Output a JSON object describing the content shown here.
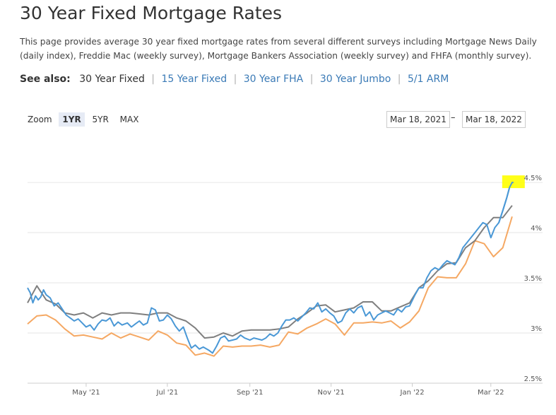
{
  "page": {
    "title": "30 Year Fixed Mortgage Rates",
    "description": "This page provides average 30 year fixed mortgage rates from several different surveys including Mortgage News Daily (daily index), Freddie Mac (weekly survey), Mortgage Bankers Association (weekly survey) and FHFA (monthly survey).",
    "see_also": {
      "label": "See also:",
      "current": "30 Year Fixed",
      "links": [
        "15 Year Fixed",
        "30 Year FHA",
        "30 Year Jumbo",
        "5/1 ARM"
      ]
    }
  },
  "controls": {
    "zoom_label": "Zoom",
    "zoom_options": [
      "1YR",
      "5YR",
      "MAX"
    ],
    "zoom_selected": "1YR",
    "range_from": "Mar 18, 2021",
    "range_to": "Mar 18, 2022",
    "range_separator": "–"
  },
  "colors": {
    "daily": "#4a98d6",
    "gray": "#7f7f7f",
    "orange": "#f5a863",
    "highlight": "#ffff00",
    "grid": "#e6e6e6"
  },
  "chart_data": {
    "type": "line",
    "x_ticks": [
      {
        "date": "2021-05-01",
        "label": "May '21"
      },
      {
        "date": "2021-07-01",
        "label": "Jul '21"
      },
      {
        "date": "2021-09-01",
        "label": "Sep '21"
      },
      {
        "date": "2021-11-01",
        "label": "Nov '21"
      },
      {
        "date": "2022-01-01",
        "label": "Jan '22"
      },
      {
        "date": "2022-03-01",
        "label": "Mar '22"
      }
    ],
    "y_ticks": [
      {
        "value": 2.5,
        "label": "2.5%"
      },
      {
        "value": 3.0,
        "label": "3%"
      },
      {
        "value": 3.5,
        "label": "3.5%"
      },
      {
        "value": 4.0,
        "label": "4%"
      },
      {
        "value": 4.5,
        "label": "4.5%"
      }
    ],
    "xlim": [
      "2021-03-18",
      "2022-03-25"
    ],
    "ylim": [
      2.5,
      5.05
    ],
    "grid": "horizontal",
    "highlight_last_point": true,
    "series": [
      {
        "color": "#4a98d6",
        "points": [
          [
            "2021-03-18",
            3.45
          ],
          [
            "2021-03-20",
            3.4
          ],
          [
            "2021-03-22",
            3.3
          ],
          [
            "2021-03-24",
            3.37
          ],
          [
            "2021-03-26",
            3.33
          ],
          [
            "2021-03-28",
            3.36
          ],
          [
            "2021-03-30",
            3.43
          ],
          [
            "2021-04-01",
            3.38
          ],
          [
            "2021-04-04",
            3.35
          ],
          [
            "2021-04-07",
            3.27
          ],
          [
            "2021-04-10",
            3.3
          ],
          [
            "2021-04-13",
            3.24
          ],
          [
            "2021-04-16",
            3.18
          ],
          [
            "2021-04-19",
            3.15
          ],
          [
            "2021-04-22",
            3.12
          ],
          [
            "2021-04-25",
            3.14
          ],
          [
            "2021-04-28",
            3.1
          ],
          [
            "2021-05-01",
            3.06
          ],
          [
            "2021-05-04",
            3.08
          ],
          [
            "2021-05-07",
            3.03
          ],
          [
            "2021-05-10",
            3.09
          ],
          [
            "2021-05-13",
            3.13
          ],
          [
            "2021-05-16",
            3.12
          ],
          [
            "2021-05-19",
            3.15
          ],
          [
            "2021-05-22",
            3.07
          ],
          [
            "2021-05-25",
            3.11
          ],
          [
            "2021-05-28",
            3.08
          ],
          [
            "2021-06-01",
            3.1
          ],
          [
            "2021-06-04",
            3.06
          ],
          [
            "2021-06-07",
            3.09
          ],
          [
            "2021-06-10",
            3.12
          ],
          [
            "2021-06-13",
            3.08
          ],
          [
            "2021-06-16",
            3.1
          ],
          [
            "2021-06-19",
            3.25
          ],
          [
            "2021-06-22",
            3.23
          ],
          [
            "2021-06-25",
            3.12
          ],
          [
            "2021-06-28",
            3.13
          ],
          [
            "2021-07-01",
            3.18
          ],
          [
            "2021-07-04",
            3.14
          ],
          [
            "2021-07-07",
            3.07
          ],
          [
            "2021-07-10",
            3.02
          ],
          [
            "2021-07-13",
            3.06
          ],
          [
            "2021-07-16",
            2.95
          ],
          [
            "2021-07-19",
            2.85
          ],
          [
            "2021-07-22",
            2.88
          ],
          [
            "2021-07-25",
            2.84
          ],
          [
            "2021-07-28",
            2.86
          ],
          [
            "2021-08-01",
            2.83
          ],
          [
            "2021-08-04",
            2.8
          ],
          [
            "2021-08-07",
            2.87
          ],
          [
            "2021-08-10",
            2.95
          ],
          [
            "2021-08-13",
            2.97
          ],
          [
            "2021-08-16",
            2.92
          ],
          [
            "2021-08-19",
            2.93
          ],
          [
            "2021-08-22",
            2.94
          ],
          [
            "2021-08-25",
            2.98
          ],
          [
            "2021-08-28",
            2.95
          ],
          [
            "2021-09-01",
            2.93
          ],
          [
            "2021-09-04",
            2.95
          ],
          [
            "2021-09-07",
            2.94
          ],
          [
            "2021-09-10",
            2.93
          ],
          [
            "2021-09-13",
            2.95
          ],
          [
            "2021-09-16",
            2.99
          ],
          [
            "2021-09-19",
            2.97
          ],
          [
            "2021-09-22",
            3.0
          ],
          [
            "2021-09-25",
            3.07
          ],
          [
            "2021-09-28",
            3.13
          ],
          [
            "2021-10-01",
            3.13
          ],
          [
            "2021-10-04",
            3.15
          ],
          [
            "2021-10-07",
            3.12
          ],
          [
            "2021-10-10",
            3.16
          ],
          [
            "2021-10-13",
            3.2
          ],
          [
            "2021-10-16",
            3.25
          ],
          [
            "2021-10-19",
            3.24
          ],
          [
            "2021-10-22",
            3.3
          ],
          [
            "2021-10-25",
            3.21
          ],
          [
            "2021-10-28",
            3.24
          ],
          [
            "2021-10-31",
            3.2
          ],
          [
            "2021-11-03",
            3.17
          ],
          [
            "2021-11-06",
            3.1
          ],
          [
            "2021-11-09",
            3.12
          ],
          [
            "2021-11-12",
            3.2
          ],
          [
            "2021-11-15",
            3.24
          ],
          [
            "2021-11-18",
            3.2
          ],
          [
            "2021-11-21",
            3.25
          ],
          [
            "2021-11-24",
            3.27
          ],
          [
            "2021-11-27",
            3.17
          ],
          [
            "2021-11-30",
            3.21
          ],
          [
            "2021-12-03",
            3.13
          ],
          [
            "2021-12-06",
            3.18
          ],
          [
            "2021-12-09",
            3.2
          ],
          [
            "2021-12-12",
            3.22
          ],
          [
            "2021-12-15",
            3.2
          ],
          [
            "2021-12-18",
            3.18
          ],
          [
            "2021-12-21",
            3.24
          ],
          [
            "2021-12-24",
            3.21
          ],
          [
            "2021-12-27",
            3.26
          ],
          [
            "2021-12-30",
            3.27
          ],
          [
            "2022-01-03",
            3.38
          ],
          [
            "2022-01-06",
            3.45
          ],
          [
            "2022-01-09",
            3.45
          ],
          [
            "2022-01-12",
            3.55
          ],
          [
            "2022-01-15",
            3.62
          ],
          [
            "2022-01-18",
            3.65
          ],
          [
            "2022-01-21",
            3.63
          ],
          [
            "2022-01-24",
            3.68
          ],
          [
            "2022-01-27",
            3.72
          ],
          [
            "2022-01-30",
            3.7
          ],
          [
            "2022-02-02",
            3.68
          ],
          [
            "2022-02-05",
            3.75
          ],
          [
            "2022-02-08",
            3.85
          ],
          [
            "2022-02-11",
            3.9
          ],
          [
            "2022-02-14",
            3.95
          ],
          [
            "2022-02-17",
            4.0
          ],
          [
            "2022-02-20",
            4.05
          ],
          [
            "2022-02-23",
            4.1
          ],
          [
            "2022-02-26",
            4.08
          ],
          [
            "2022-03-01",
            3.95
          ],
          [
            "2022-03-04",
            4.05
          ],
          [
            "2022-03-07",
            4.1
          ],
          [
            "2022-03-10",
            4.22
          ],
          [
            "2022-03-13",
            4.35
          ],
          [
            "2022-03-15",
            4.45
          ],
          [
            "2022-03-17",
            4.5
          ],
          [
            "2022-03-18",
            4.5
          ]
        ]
      },
      {
        "color": "#7f7f7f",
        "points": [
          [
            "2021-03-18",
            3.3
          ],
          [
            "2021-03-25",
            3.47
          ],
          [
            "2021-04-01",
            3.33
          ],
          [
            "2021-04-08",
            3.29
          ],
          [
            "2021-04-15",
            3.2
          ],
          [
            "2021-04-22",
            3.18
          ],
          [
            "2021-04-29",
            3.2
          ],
          [
            "2021-05-06",
            3.15
          ],
          [
            "2021-05-13",
            3.2
          ],
          [
            "2021-05-20",
            3.18
          ],
          [
            "2021-05-27",
            3.2
          ],
          [
            "2021-06-03",
            3.2
          ],
          [
            "2021-06-10",
            3.19
          ],
          [
            "2021-06-17",
            3.18
          ],
          [
            "2021-06-24",
            3.2
          ],
          [
            "2021-07-01",
            3.2
          ],
          [
            "2021-07-08",
            3.15
          ],
          [
            "2021-07-15",
            3.12
          ],
          [
            "2021-07-22",
            3.05
          ],
          [
            "2021-07-29",
            2.95
          ],
          [
            "2021-08-05",
            2.96
          ],
          [
            "2021-08-12",
            3.0
          ],
          [
            "2021-08-19",
            2.97
          ],
          [
            "2021-08-26",
            3.02
          ],
          [
            "2021-09-02",
            3.03
          ],
          [
            "2021-09-09",
            3.03
          ],
          [
            "2021-09-16",
            3.03
          ],
          [
            "2021-09-23",
            3.04
          ],
          [
            "2021-09-30",
            3.06
          ],
          [
            "2021-10-07",
            3.14
          ],
          [
            "2021-10-14",
            3.2
          ],
          [
            "2021-10-21",
            3.27
          ],
          [
            "2021-10-28",
            3.28
          ],
          [
            "2021-11-04",
            3.21
          ],
          [
            "2021-11-11",
            3.23
          ],
          [
            "2021-11-18",
            3.25
          ],
          [
            "2021-11-25",
            3.31
          ],
          [
            "2021-12-02",
            3.31
          ],
          [
            "2021-12-09",
            3.22
          ],
          [
            "2021-12-16",
            3.22
          ],
          [
            "2021-12-23",
            3.26
          ],
          [
            "2021-12-30",
            3.3
          ],
          [
            "2022-01-06",
            3.45
          ],
          [
            "2022-01-13",
            3.52
          ],
          [
            "2022-01-20",
            3.62
          ],
          [
            "2022-01-27",
            3.69
          ],
          [
            "2022-02-03",
            3.7
          ],
          [
            "2022-02-10",
            3.85
          ],
          [
            "2022-02-17",
            3.92
          ],
          [
            "2022-02-24",
            4.05
          ],
          [
            "2022-03-03",
            4.15
          ],
          [
            "2022-03-10",
            4.15
          ],
          [
            "2022-03-17",
            4.27
          ]
        ]
      },
      {
        "color": "#f5a863",
        "points": [
          [
            "2021-03-18",
            3.09
          ],
          [
            "2021-03-25",
            3.17
          ],
          [
            "2021-04-01",
            3.18
          ],
          [
            "2021-04-08",
            3.13
          ],
          [
            "2021-04-15",
            3.04
          ],
          [
            "2021-04-22",
            2.97
          ],
          [
            "2021-04-29",
            2.98
          ],
          [
            "2021-05-06",
            2.96
          ],
          [
            "2021-05-13",
            2.94
          ],
          [
            "2021-05-20",
            3.0
          ],
          [
            "2021-05-27",
            2.95
          ],
          [
            "2021-06-03",
            2.99
          ],
          [
            "2021-06-10",
            2.96
          ],
          [
            "2021-06-17",
            2.93
          ],
          [
            "2021-06-24",
            3.02
          ],
          [
            "2021-07-01",
            2.98
          ],
          [
            "2021-07-08",
            2.9
          ],
          [
            "2021-07-15",
            2.88
          ],
          [
            "2021-07-22",
            2.78
          ],
          [
            "2021-07-29",
            2.8
          ],
          [
            "2021-08-05",
            2.77
          ],
          [
            "2021-08-12",
            2.87
          ],
          [
            "2021-08-19",
            2.86
          ],
          [
            "2021-08-26",
            2.87
          ],
          [
            "2021-09-02",
            2.87
          ],
          [
            "2021-09-09",
            2.88
          ],
          [
            "2021-09-16",
            2.86
          ],
          [
            "2021-09-23",
            2.88
          ],
          [
            "2021-09-30",
            3.01
          ],
          [
            "2021-10-07",
            2.99
          ],
          [
            "2021-10-14",
            3.05
          ],
          [
            "2021-10-21",
            3.09
          ],
          [
            "2021-10-28",
            3.14
          ],
          [
            "2021-11-04",
            3.09
          ],
          [
            "2021-11-11",
            2.98
          ],
          [
            "2021-11-18",
            3.1
          ],
          [
            "2021-11-25",
            3.1
          ],
          [
            "2021-12-02",
            3.11
          ],
          [
            "2021-12-09",
            3.1
          ],
          [
            "2021-12-16",
            3.12
          ],
          [
            "2021-12-23",
            3.05
          ],
          [
            "2021-12-30",
            3.11
          ],
          [
            "2022-01-06",
            3.22
          ],
          [
            "2022-01-13",
            3.45
          ],
          [
            "2022-01-20",
            3.56
          ],
          [
            "2022-01-27",
            3.55
          ],
          [
            "2022-02-03",
            3.55
          ],
          [
            "2022-02-10",
            3.69
          ],
          [
            "2022-02-17",
            3.92
          ],
          [
            "2022-02-24",
            3.89
          ],
          [
            "2022-03-03",
            3.76
          ],
          [
            "2022-03-10",
            3.85
          ],
          [
            "2022-03-17",
            4.16
          ]
        ]
      }
    ]
  }
}
